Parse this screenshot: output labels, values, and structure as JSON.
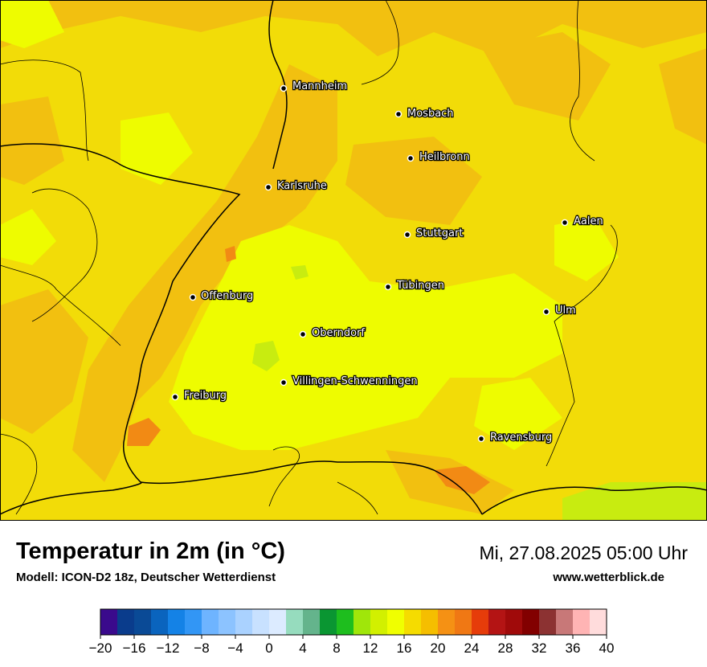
{
  "header": {
    "title": "Temperatur in 2m (in °C)",
    "model": "Modell: ICON-D2 18z, Deutscher Wetterdienst",
    "datetime": "Mi, 27.08.2025 05:00 Uhr",
    "website": "www.wetterblick.de"
  },
  "cities": [
    {
      "name": "Mannheim"
    },
    {
      "name": "Mosbach"
    },
    {
      "name": "Heilbronn"
    },
    {
      "name": "Karlsruhe"
    },
    {
      "name": "Aalen"
    },
    {
      "name": "Stuttgart"
    },
    {
      "name": "Tübingen"
    },
    {
      "name": "Offenburg"
    },
    {
      "name": "Ulm"
    },
    {
      "name": "Oberndorf"
    },
    {
      "name": "Villingen-Schwenningen"
    },
    {
      "name": "Freiburg"
    },
    {
      "name": "Ravensburg"
    }
  ],
  "legend": {
    "unit": "°C",
    "min": -20,
    "max": 40,
    "step": 2,
    "colors": [
      "#3a0a8c",
      "#0a3c8c",
      "#0a4a96",
      "#0a64be",
      "#1482e6",
      "#3296f5",
      "#6eb4ff",
      "#8cc3ff",
      "#aad2ff",
      "#c8e1ff",
      "#dcebff",
      "#96dcbe",
      "#64b48c",
      "#0a9632",
      "#1ebe1e",
      "#a0e60a",
      "#d2f000",
      "#f0ff00",
      "#f5dc00",
      "#f5be00",
      "#f59114",
      "#f07814",
      "#e63c0a",
      "#b41414",
      "#a00a0a",
      "#820000",
      "#8c3232",
      "#c87878",
      "#ffb4b4",
      "#ffdcdc"
    ],
    "ticks": [
      "−20",
      "−16",
      "−12",
      "−8",
      "−4",
      "0",
      "4",
      "8",
      "12",
      "16",
      "20",
      "24",
      "28",
      "32",
      "36",
      "40"
    ]
  }
}
